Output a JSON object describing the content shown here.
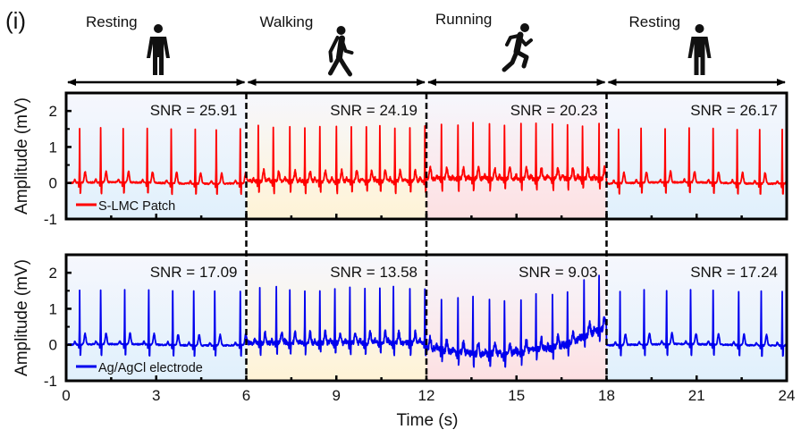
{
  "panel_label": "(i)",
  "phases": [
    {
      "label": "Resting",
      "icon": "standing-person-icon",
      "t_start": 0,
      "t_end": 6,
      "tint": "#e0f0fc"
    },
    {
      "label": "Walking",
      "icon": "walking-person-icon",
      "t_start": 6,
      "t_end": 12,
      "tint": "#fff3d6"
    },
    {
      "label": "Running",
      "icon": "running-person-icon",
      "t_start": 12,
      "t_end": 18,
      "tint": "#fde0e2"
    },
    {
      "label": "Resting",
      "icon": "standing-person-icon",
      "t_start": 18,
      "t_end": 24,
      "tint": "#e0f0fc"
    }
  ],
  "chart_data": [
    {
      "type": "line",
      "title": "",
      "xlabel": "",
      "ylabel": "Amplitude (mV)",
      "xlim": [
        0,
        24
      ],
      "ylim": [
        -1,
        2.5
      ],
      "yticks": [
        -1,
        0,
        1,
        2
      ],
      "xticks": [
        0,
        3,
        6,
        9,
        12,
        15,
        18,
        21,
        24
      ],
      "show_xtick_labels": false,
      "grid": false,
      "legend": {
        "label": "S-LMC Patch",
        "placement": "bottom-left"
      },
      "series": [
        {
          "name": "S-LMC Patch",
          "color": "#ff0000",
          "r_peak_times_s": [
            0.45,
            1.15,
            1.9,
            2.7,
            3.5,
            4.3,
            5.0,
            5.8,
            6.4,
            6.9,
            7.45,
            7.95,
            8.45,
            9.0,
            9.5,
            10.0,
            10.45,
            10.95,
            11.45,
            11.95,
            12.5,
            13.05,
            13.55,
            14.1,
            14.6,
            15.15,
            15.65,
            16.2,
            16.7,
            17.2,
            17.75,
            18.4,
            19.15,
            19.95,
            20.75,
            21.55,
            22.35,
            23.1,
            23.85
          ],
          "r_peak_amplitude_mV": 1.5,
          "baseline_mV": 0.0
        }
      ],
      "annotations": [
        {
          "text": "SNR = 25.91",
          "phase": 0
        },
        {
          "text": "SNR = 24.19",
          "phase": 1
        },
        {
          "text": "SNR = 20.23",
          "phase": 2
        },
        {
          "text": "SNR = 26.17",
          "phase": 3
        }
      ]
    },
    {
      "type": "line",
      "title": "",
      "xlabel": "Time (s)",
      "ylabel": "Amplitude (mV)",
      "xlim": [
        0,
        24
      ],
      "ylim": [
        -1,
        2.5
      ],
      "yticks": [
        -1,
        0,
        1,
        2
      ],
      "xticks": [
        0,
        3,
        6,
        9,
        12,
        15,
        18,
        21,
        24
      ],
      "show_xtick_labels": true,
      "grid": false,
      "legend": {
        "label": "Ag/AgCl electrode",
        "placement": "bottom-left"
      },
      "series": [
        {
          "name": "Ag/AgCl electrode",
          "color": "#0000ee",
          "r_peak_times_s": [
            0.45,
            1.15,
            1.95,
            2.75,
            3.55,
            4.25,
            4.95,
            5.8,
            6.45,
            7.0,
            7.45,
            7.95,
            8.45,
            8.95,
            9.45,
            9.95,
            10.45,
            10.9,
            11.45,
            11.95,
            12.5,
            13.05,
            13.55,
            14.1,
            14.6,
            15.15,
            15.65,
            16.2,
            16.7,
            17.25,
            17.75,
            18.45,
            19.25,
            20.0,
            20.8,
            21.55,
            22.4,
            23.15,
            23.85
          ],
          "r_peak_amplitude_mV": 1.5,
          "baseline_mV": 0.0
        }
      ],
      "annotations": [
        {
          "text": "SNR = 17.09",
          "phase": 0
        },
        {
          "text": "SNR = 13.58",
          "phase": 1
        },
        {
          "text": "SNR = 9.03",
          "phase": 2
        },
        {
          "text": "SNR = 17.24",
          "phase": 3
        }
      ]
    }
  ]
}
